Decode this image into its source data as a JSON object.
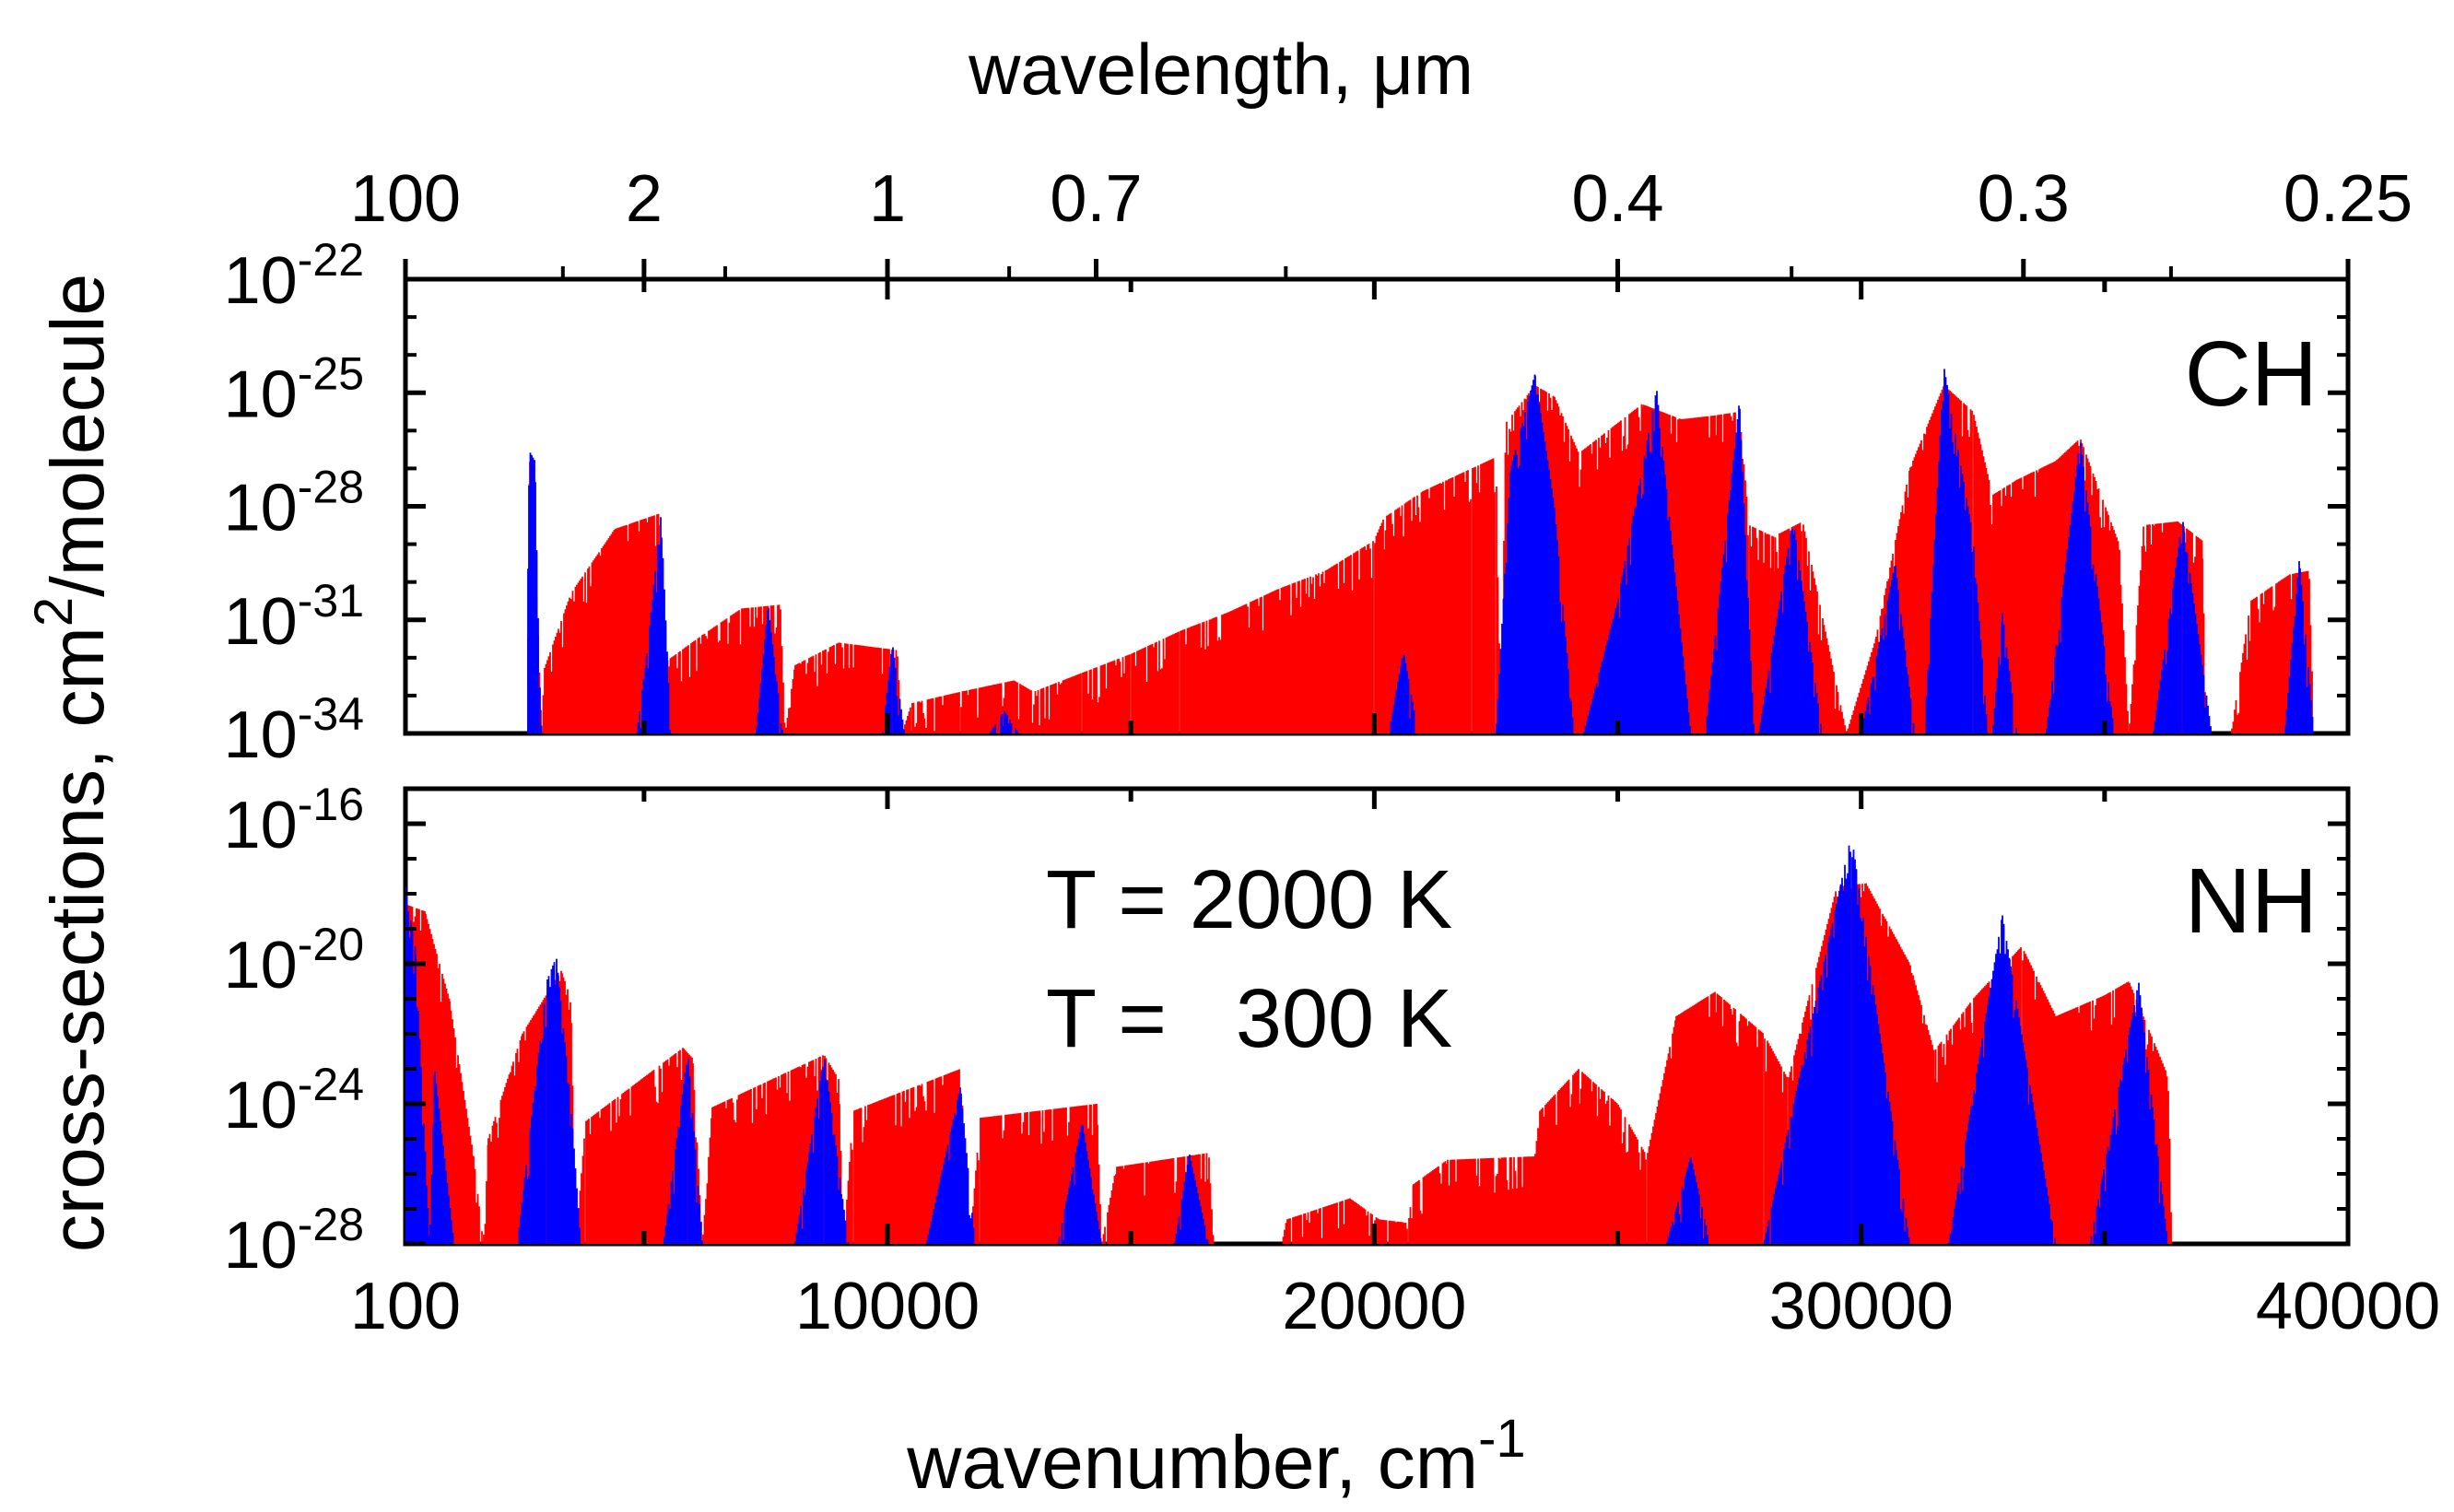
{
  "chart_data": {
    "type": "area",
    "top_axis": {
      "label": "wavelength, ",
      "label_unit": "μm",
      "ticks": [
        {
          "text": "100",
          "wavenumber": 100
        },
        {
          "text": "2",
          "wavenumber": 5000
        },
        {
          "text": "1",
          "wavenumber": 10000
        },
        {
          "text": "0.7",
          "wavenumber": 14286
        },
        {
          "text": "0.4",
          "wavenumber": 25000
        },
        {
          "text": "0.3",
          "wavenumber": 33333
        },
        {
          "text": "0.25",
          "wavenumber": 40000
        }
      ],
      "minor_ticks_wavenumber": [
        3333,
        6667,
        12500,
        18182,
        28571,
        36364
      ]
    },
    "xlabel": "wavenumber, cm",
    "xlabel_sup": "-1",
    "xlim": [
      100,
      40000
    ],
    "x_ticks": [
      {
        "text": "100",
        "value": 100
      },
      {
        "text": "10000",
        "value": 10000
      },
      {
        "text": "20000",
        "value": 20000
      },
      {
        "text": "30000",
        "value": 30000
      },
      {
        "text": "40000",
        "value": 40000
      }
    ],
    "ylabel": "cross-sections, cm",
    "ylabel_sup": "2",
    "ylabel_tail": "/molecule",
    "legend": [
      {
        "text": "T = 2000 K",
        "color": "#ff0000"
      },
      {
        "text": "T =   300 K",
        "color": "#0000ff"
      }
    ],
    "panels": [
      {
        "name": "CH",
        "ylim_log10": [
          -34,
          -22
        ],
        "y_ticks": [
          {
            "base": "10",
            "exp": "-22",
            "log": -22
          },
          {
            "base": "10",
            "exp": "-25",
            "log": -25
          },
          {
            "base": "10",
            "exp": "-28",
            "log": -28
          },
          {
            "base": "10",
            "exp": "-31",
            "log": -31
          },
          {
            "base": "10",
            "exp": "-34",
            "log": -34
          }
        ],
        "series": [
          {
            "name": "T = 2000 K",
            "color": "#ff0000",
            "points": [
              [
                2600,
                -34
              ],
              [
                2650,
                -26.8
              ],
              [
                2700,
                -27
              ],
              [
                2900,
                -34
              ],
              [
                2950,
                -32.3
              ],
              [
                3500,
                -30.3
              ],
              [
                4400,
                -28.6
              ],
              [
                5300,
                -28.2
              ],
              [
                5400,
                -34
              ],
              [
                5450,
                -32.1
              ],
              [
                6200,
                -31.4
              ],
              [
                7000,
                -30.7
              ],
              [
                7800,
                -30.6
              ],
              [
                7900,
                -34
              ],
              [
                8100,
                -32.2
              ],
              [
                9000,
                -31.6
              ],
              [
                10200,
                -31.8
              ],
              [
                10300,
                -34
              ],
              [
                10500,
                -33.2
              ],
              [
                11500,
                -32.9
              ],
              [
                12600,
                -32.6
              ],
              [
                13000,
                -32.9
              ],
              [
                14000,
                -32.4
              ],
              [
                15000,
                -31.9
              ],
              [
                16000,
                -31.3
              ],
              [
                17000,
                -30.8
              ],
              [
                18000,
                -30.2
              ],
              [
                19000,
                -29.7
              ],
              [
                20000,
                -28.9
              ],
              [
                20200,
                -28.3
              ],
              [
                21000,
                -27.6
              ],
              [
                22000,
                -27.0
              ],
              [
                22500,
                -26.7
              ],
              [
                22600,
                -34
              ],
              [
                22700,
                -25.8
              ],
              [
                23300,
                -24.8
              ],
              [
                23700,
                -25.1
              ],
              [
                24200,
                -26.6
              ],
              [
                24600,
                -26.2
              ],
              [
                25500,
                -25.3
              ],
              [
                26300,
                -25.7
              ],
              [
                27000,
                -25.6
              ],
              [
                27500,
                -25.5
              ],
              [
                27700,
                -28.5
              ],
              [
                28200,
                -28.8
              ],
              [
                28800,
                -28.4
              ],
              [
                29700,
                -34
              ],
              [
                30300,
                -31.5
              ],
              [
                31000,
                -27.0
              ],
              [
                31700,
                -24.8
              ],
              [
                32300,
                -25.5
              ],
              [
                32700,
                -27.7
              ],
              [
                33200,
                -27.3
              ],
              [
                34000,
                -26.8
              ],
              [
                34500,
                -26.2
              ],
              [
                35300,
                -29.0
              ],
              [
                35500,
                -34
              ],
              [
                35800,
                -28.5
              ],
              [
                36500,
                -28.4
              ],
              [
                37000,
                -28.9
              ],
              [
                37100,
                -34
              ],
              [
                37600,
                -34
              ],
              [
                38000,
                -30.5
              ],
              [
                38800,
                -29.8
              ],
              [
                39200,
                -29.7
              ],
              [
                39300,
                -34
              ]
            ]
          },
          {
            "name": "T = 300 K",
            "color": "#0000ff",
            "points": [
              [
                2600,
                -34
              ],
              [
                2630,
                -26.5
              ],
              [
                2760,
                -26.8
              ],
              [
                2850,
                -32.5
              ],
              [
                2920,
                -34
              ],
              [
                4850,
                -34
              ],
              [
                5050,
                -32
              ],
              [
                5350,
                -28.2
              ],
              [
                5550,
                -34
              ],
              [
                7300,
                -34
              ],
              [
                7550,
                -30.6
              ],
              [
                7850,
                -34
              ],
              [
                9900,
                -34
              ],
              [
                10100,
                -31.6
              ],
              [
                10350,
                -34
              ],
              [
                12100,
                -34
              ],
              [
                12400,
                -33.4
              ],
              [
                12700,
                -34
              ],
              [
                20300,
                -34
              ],
              [
                20600,
                -31.8
              ],
              [
                20900,
                -34
              ],
              [
                22500,
                -34
              ],
              [
                22800,
                -27
              ],
              [
                23300,
                -24.5
              ],
              [
                23700,
                -28
              ],
              [
                24100,
                -34
              ],
              [
                24300,
                -34
              ],
              [
                25000,
                -30.5
              ],
              [
                25800,
                -24.9
              ],
              [
                26500,
                -34
              ],
              [
                26800,
                -34
              ],
              [
                27500,
                -25.2
              ],
              [
                27800,
                -34
              ],
              [
                27900,
                -34
              ],
              [
                28600,
                -28.3
              ],
              [
                29200,
                -34
              ],
              [
                30000,
                -34
              ],
              [
                30700,
                -29.5
              ],
              [
                31300,
                -34
              ],
              [
                31100,
                -34
              ],
              [
                31700,
                -24.3
              ],
              [
                32300,
                -28.8
              ],
              [
                32700,
                -34
              ],
              [
                32600,
                -34
              ],
              [
                32900,
                -30.8
              ],
              [
                33200,
                -34
              ],
              [
                33800,
                -34
              ],
              [
                34500,
                -26.2
              ],
              [
                35200,
                -34
              ],
              [
                36000,
                -34
              ],
              [
                36600,
                -28.3
              ],
              [
                37200,
                -34
              ],
              [
                38700,
                -34
              ],
              [
                39000,
                -29.4
              ],
              [
                39300,
                -34
              ]
            ]
          }
        ]
      },
      {
        "name": "NH",
        "ylim_log10": [
          -28,
          -15
        ],
        "y_ticks": [
          {
            "base": "10",
            "exp": "-16",
            "log": -16
          },
          {
            "base": "10",
            "exp": "-20",
            "log": -20
          },
          {
            "base": "10",
            "exp": "-24",
            "log": -24
          },
          {
            "base": "10",
            "exp": "-28",
            "log": -28
          }
        ],
        "series": [
          {
            "name": "T = 2000 K",
            "color": "#ff0000",
            "points": [
              [
                100,
                -18.3
              ],
              [
                500,
                -18.5
              ],
              [
                1000,
                -21
              ],
              [
                1500,
                -25.5
              ],
              [
                1700,
                -28
              ],
              [
                1800,
                -25
              ],
              [
                2500,
                -22
              ],
              [
                3300,
                -20.2
              ],
              [
                3500,
                -21
              ],
              [
                3600,
                -28
              ],
              [
                3800,
                -24.5
              ],
              [
                5800,
                -22.4
              ],
              [
                6000,
                -22.7
              ],
              [
                6200,
                -28
              ],
              [
                6400,
                -24.1
              ],
              [
                8700,
                -22.6
              ],
              [
                9000,
                -23.3
              ],
              [
                9100,
                -28
              ],
              [
                9300,
                -24.2
              ],
              [
                11500,
                -23.0
              ],
              [
                11700,
                -28
              ],
              [
                11900,
                -24.4
              ],
              [
                14300,
                -24.0
              ],
              [
                14400,
                -28
              ],
              [
                14700,
                -25.8
              ],
              [
                16600,
                -25.4
              ],
              [
                16700,
                -28
              ],
              [
                18100,
                -28
              ],
              [
                18200,
                -27.3
              ],
              [
                19500,
                -26.7
              ],
              [
                20100,
                -27.3
              ],
              [
                20700,
                -27.4
              ],
              [
                20800,
                -26.3
              ],
              [
                21500,
                -25.6
              ],
              [
                23300,
                -25.5
              ],
              [
                23400,
                -24.2
              ],
              [
                24200,
                -23.0
              ],
              [
                25000,
                -24.0
              ],
              [
                25600,
                -25.5
              ],
              [
                26200,
                -21.5
              ],
              [
                27000,
                -20.8
              ],
              [
                28000,
                -22.0
              ],
              [
                28500,
                -23.3
              ],
              [
                29500,
                -17.8
              ],
              [
                30100,
                -17.7
              ],
              [
                31000,
                -20.0
              ],
              [
                31500,
                -22.5
              ],
              [
                32300,
                -21.0
              ],
              [
                33300,
                -19.5
              ],
              [
                34000,
                -21.5
              ],
              [
                35000,
                -20.9
              ],
              [
                35500,
                -20.5
              ],
              [
                36300,
                -23.2
              ],
              [
                36400,
                -28
              ]
            ]
          },
          {
            "name": "T = 300 K",
            "color": "#0000ff",
            "points": [
              [
                100,
                -17.8
              ],
              [
                300,
                -19.5
              ],
              [
                600,
                -28
              ],
              [
                700,
                -23
              ],
              [
                1100,
                -28
              ],
              [
                2400,
                -28
              ],
              [
                3000,
                -20.5
              ],
              [
                3200,
                -19.8
              ],
              [
                3500,
                -24
              ],
              [
                3700,
                -28
              ],
              [
                5400,
                -28
              ],
              [
                5900,
                -22.5
              ],
              [
                6200,
                -28
              ],
              [
                8100,
                -28
              ],
              [
                8700,
                -22.6
              ],
              [
                9200,
                -28
              ],
              [
                10800,
                -28
              ],
              [
                11500,
                -23.5
              ],
              [
                11800,
                -28
              ],
              [
                13500,
                -28
              ],
              [
                14000,
                -24.5
              ],
              [
                14400,
                -28
              ],
              [
                15900,
                -28
              ],
              [
                16200,
                -25.4
              ],
              [
                16600,
                -28
              ],
              [
                26000,
                -28
              ],
              [
                26500,
                -25.5
              ],
              [
                26900,
                -28
              ],
              [
                28000,
                -28
              ],
              [
                29800,
                -16.3
              ],
              [
                31000,
                -28
              ],
              [
                31800,
                -28
              ],
              [
                32900,
                -18.6
              ],
              [
                34000,
                -28
              ],
              [
                34700,
                -28
              ],
              [
                35700,
                -20.5
              ],
              [
                36300,
                -28
              ]
            ]
          }
        ]
      }
    ]
  }
}
